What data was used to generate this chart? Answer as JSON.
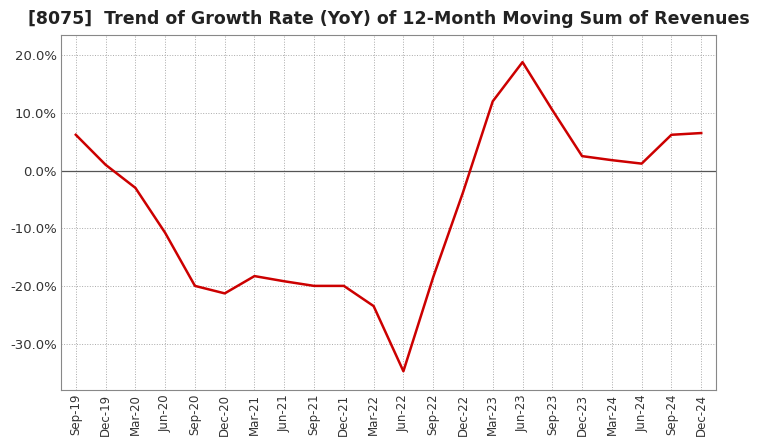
{
  "title": "[8075]  Trend of Growth Rate (YoY) of 12-Month Moving Sum of Revenues",
  "title_fontsize": 12.5,
  "ylim": [
    -0.38,
    0.235
  ],
  "yticks": [
    0.2,
    0.1,
    0.0,
    -0.1,
    -0.2,
    -0.3
  ],
  "ytick_labels": [
    "20.0%",
    "10.0%",
    "0.0%",
    "-10.0%",
    "-20.0%",
    "-30.0%"
  ],
  "line_color": "#cc0000",
  "background_color": "#ffffff",
  "grid_color": "#aaaaaa",
  "x_labels": [
    "Sep-19",
    "Dec-19",
    "Mar-20",
    "Jun-20",
    "Sep-20",
    "Dec-20",
    "Mar-21",
    "Jun-21",
    "Sep-21",
    "Dec-21",
    "Mar-22",
    "Jun-22",
    "Sep-22",
    "Dec-22",
    "Mar-23",
    "Jun-23",
    "Sep-23",
    "Dec-23",
    "Mar-24",
    "Jun-24",
    "Sep-24",
    "Dec-24"
  ],
  "y_values": [
    0.062,
    0.01,
    -0.03,
    -0.108,
    -0.2,
    -0.213,
    -0.183,
    -0.192,
    -0.2,
    -0.2,
    -0.235,
    -0.348,
    -0.185,
    -0.038,
    0.12,
    0.188,
    0.105,
    0.025,
    0.018,
    0.012,
    0.062,
    0.065
  ]
}
